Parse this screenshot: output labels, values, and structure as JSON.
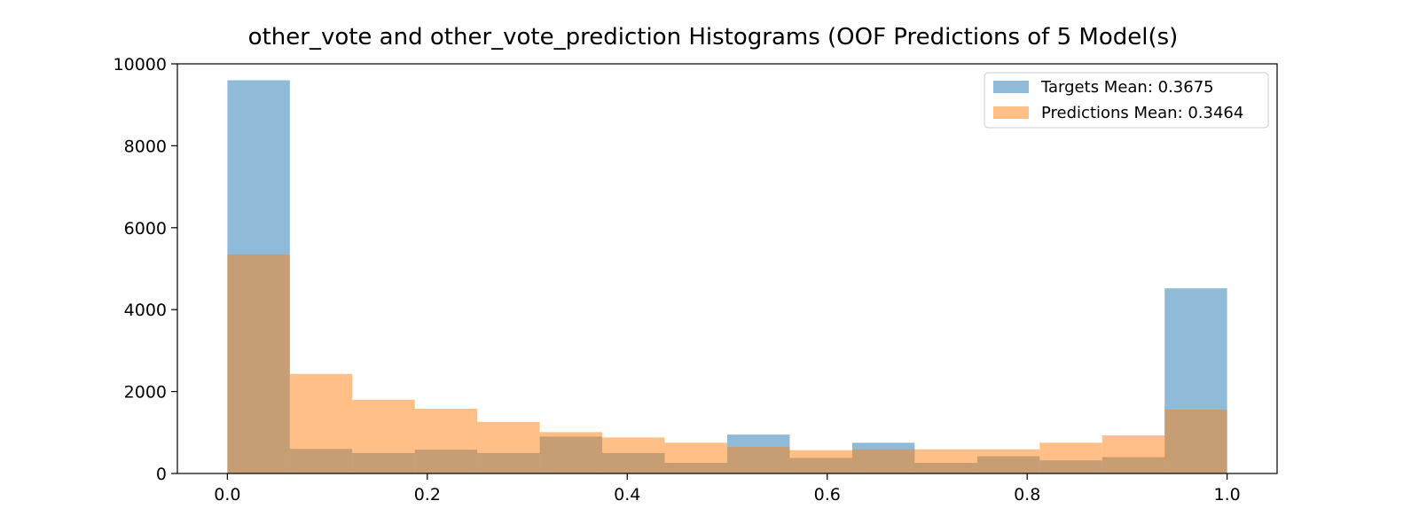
{
  "chart_data": {
    "type": "bar",
    "title": "other_vote and other_vote_prediction Histograms (OOF Predictions of 5 Model(s)",
    "xlabel": "",
    "ylabel": "",
    "xlim": [
      -0.05,
      1.05
    ],
    "ylim": [
      0,
      10000
    ],
    "x_ticks": [
      "0.0",
      "0.2",
      "0.4",
      "0.6",
      "0.8",
      "1.0"
    ],
    "y_ticks": [
      "0",
      "2000",
      "4000",
      "6000",
      "8000",
      "10000"
    ],
    "bin_edges": [
      0.0,
      0.0625,
      0.125,
      0.1875,
      0.25,
      0.3125,
      0.375,
      0.4375,
      0.5,
      0.5625,
      0.625,
      0.6875,
      0.75,
      0.8125,
      0.875,
      0.9375,
      1.0
    ],
    "series": [
      {
        "name": "Targets Mean: 0.3675",
        "color": "#1f77b4",
        "opacity": 0.5,
        "values": [
          9600,
          600,
          500,
          580,
          500,
          900,
          500,
          260,
          950,
          380,
          750,
          260,
          420,
          320,
          400,
          4520
        ]
      },
      {
        "name": "Predictions Mean: 0.3464",
        "color": "#ff7f0e",
        "opacity": 0.5,
        "values": [
          5350,
          2430,
          1800,
          1580,
          1260,
          1010,
          880,
          750,
          650,
          570,
          590,
          590,
          590,
          750,
          930,
          1560
        ]
      }
    ],
    "legend_position": "top-right",
    "grid": false
  }
}
